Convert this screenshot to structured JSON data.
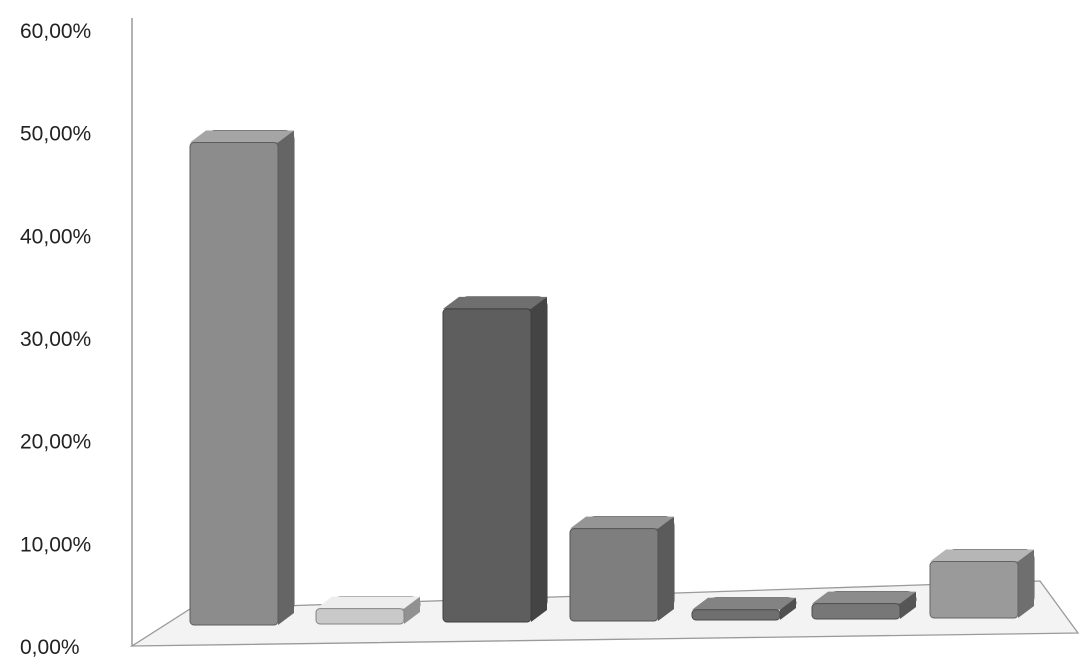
{
  "chart_data": {
    "type": "bar",
    "title": "",
    "xlabel": "",
    "ylabel": "",
    "ylim": [
      0,
      60
    ],
    "y_tick_labels": [
      "0,00%",
      "10,00%",
      "20,00%",
      "30,00%",
      "40,00%",
      "50,00%",
      "60,00%"
    ],
    "grid": false,
    "legend": "none",
    "style": "3d-columns",
    "values": [
      47.0,
      1.5,
      30.5,
      9.0,
      1.0,
      1.5,
      5.5
    ],
    "colors": [
      "#8c8c8c",
      "#c9c9c9",
      "#5e5e5e",
      "#7e7e7e",
      "#6f6f6f",
      "#777777",
      "#9a9a9a"
    ]
  }
}
